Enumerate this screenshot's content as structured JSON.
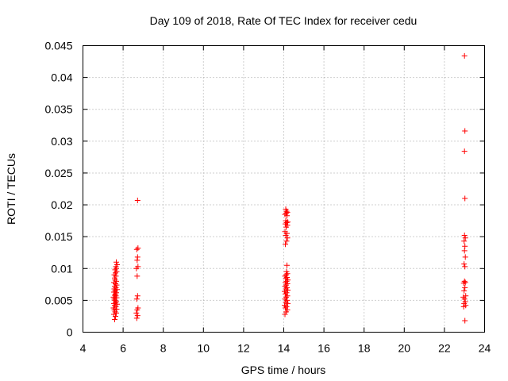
{
  "chart_data": {
    "type": "scatter",
    "title": "Day 109 of 2018, Rate Of TEC Index for receiver cedu",
    "xlabel": "GPS time / hours",
    "ylabel": "ROTI / TECUs",
    "xlim": [
      4,
      24
    ],
    "ylim": [
      0,
      0.045
    ],
    "grid": true,
    "marker": "+",
    "color": "#ff0000",
    "x_ticks": [
      "4",
      "6",
      "8",
      "10",
      "12",
      "14",
      "16",
      "18",
      "20",
      "22",
      "24"
    ],
    "y_ticks": [
      "0",
      "0.005",
      "0.01",
      "0.015",
      "0.02",
      "0.025",
      "0.03",
      "0.035",
      "0.04",
      "0.045"
    ],
    "series": [
      {
        "name": "ROTI",
        "points": [
          [
            5.58,
            0.002
          ],
          [
            5.62,
            0.0025
          ],
          [
            5.54,
            0.0028
          ],
          [
            5.66,
            0.003
          ],
          [
            5.6,
            0.0032
          ],
          [
            5.56,
            0.0035
          ],
          [
            5.68,
            0.0036
          ],
          [
            5.52,
            0.0038
          ],
          [
            5.64,
            0.004
          ],
          [
            5.58,
            0.0042
          ],
          [
            5.7,
            0.0044
          ],
          [
            5.54,
            0.0045
          ],
          [
            5.62,
            0.0047
          ],
          [
            5.66,
            0.0048
          ],
          [
            5.6,
            0.005
          ],
          [
            5.56,
            0.0052
          ],
          [
            5.68,
            0.0054
          ],
          [
            5.52,
            0.0055
          ],
          [
            5.64,
            0.0057
          ],
          [
            5.58,
            0.0058
          ],
          [
            5.62,
            0.006
          ],
          [
            5.66,
            0.0062
          ],
          [
            5.54,
            0.0063
          ],
          [
            5.6,
            0.0065
          ],
          [
            5.7,
            0.0067
          ],
          [
            5.56,
            0.0068
          ],
          [
            5.64,
            0.007
          ],
          [
            5.58,
            0.0072
          ],
          [
            5.68,
            0.0074
          ],
          [
            5.62,
            0.0076
          ],
          [
            5.54,
            0.0078
          ],
          [
            5.66,
            0.008
          ],
          [
            5.6,
            0.0082
          ],
          [
            5.58,
            0.0085
          ],
          [
            5.64,
            0.0088
          ],
          [
            5.56,
            0.009
          ],
          [
            5.62,
            0.0093
          ],
          [
            5.68,
            0.0095
          ],
          [
            5.6,
            0.0098
          ],
          [
            5.66,
            0.01
          ],
          [
            5.64,
            0.0103
          ],
          [
            5.7,
            0.0106
          ],
          [
            5.66,
            0.011
          ],
          [
            6.68,
            0.0022
          ],
          [
            6.72,
            0.0026
          ],
          [
            6.66,
            0.003
          ],
          [
            6.7,
            0.0035
          ],
          [
            6.74,
            0.0038
          ],
          [
            6.68,
            0.0052
          ],
          [
            6.72,
            0.0057
          ],
          [
            6.7,
            0.0088
          ],
          [
            6.66,
            0.01
          ],
          [
            6.74,
            0.0103
          ],
          [
            6.7,
            0.0113
          ],
          [
            6.72,
            0.0118
          ],
          [
            6.68,
            0.013
          ],
          [
            6.74,
            0.0132
          ],
          [
            6.72,
            0.0207
          ],
          [
            14.06,
            0.0028
          ],
          [
            14.12,
            0.0032
          ],
          [
            14.18,
            0.0035
          ],
          [
            14.08,
            0.0038
          ],
          [
            14.14,
            0.004
          ],
          [
            14.04,
            0.0042
          ],
          [
            14.2,
            0.0045
          ],
          [
            14.1,
            0.0047
          ],
          [
            14.16,
            0.005
          ],
          [
            14.06,
            0.0052
          ],
          [
            14.12,
            0.0055
          ],
          [
            14.18,
            0.0057
          ],
          [
            14.08,
            0.006
          ],
          [
            14.14,
            0.0062
          ],
          [
            14.04,
            0.0064
          ],
          [
            14.2,
            0.0066
          ],
          [
            14.1,
            0.0068
          ],
          [
            14.16,
            0.007
          ],
          [
            14.06,
            0.0072
          ],
          [
            14.12,
            0.0074
          ],
          [
            14.18,
            0.0076
          ],
          [
            14.08,
            0.0078
          ],
          [
            14.14,
            0.008
          ],
          [
            14.2,
            0.0082
          ],
          [
            14.1,
            0.0084
          ],
          [
            14.16,
            0.0086
          ],
          [
            14.06,
            0.0088
          ],
          [
            14.12,
            0.009
          ],
          [
            14.18,
            0.0092
          ],
          [
            14.14,
            0.0095
          ],
          [
            14.16,
            0.0105
          ],
          [
            14.08,
            0.0138
          ],
          [
            14.14,
            0.0143
          ],
          [
            14.18,
            0.0148
          ],
          [
            14.1,
            0.0152
          ],
          [
            14.16,
            0.0155
          ],
          [
            14.06,
            0.0158
          ],
          [
            14.12,
            0.0165
          ],
          [
            14.18,
            0.0168
          ],
          [
            14.08,
            0.017
          ],
          [
            14.14,
            0.0172
          ],
          [
            14.2,
            0.0173
          ],
          [
            14.1,
            0.0175
          ],
          [
            14.16,
            0.0183
          ],
          [
            14.06,
            0.0185
          ],
          [
            14.12,
            0.0187
          ],
          [
            14.18,
            0.0188
          ],
          [
            14.14,
            0.019
          ],
          [
            14.1,
            0.0193
          ],
          [
            23.02,
            0.0018
          ],
          [
            22.96,
            0.004
          ],
          [
            23.06,
            0.0042
          ],
          [
            22.98,
            0.0045
          ],
          [
            23.04,
            0.0048
          ],
          [
            23.0,
            0.0052
          ],
          [
            22.94,
            0.0055
          ],
          [
            23.06,
            0.0057
          ],
          [
            22.98,
            0.0065
          ],
          [
            23.02,
            0.007
          ],
          [
            22.96,
            0.0077
          ],
          [
            23.04,
            0.0078
          ],
          [
            23.0,
            0.008
          ],
          [
            23.02,
            0.0103
          ],
          [
            22.98,
            0.0107
          ],
          [
            23.04,
            0.0118
          ],
          [
            23.0,
            0.0128
          ],
          [
            23.02,
            0.0135
          ],
          [
            22.98,
            0.0143
          ],
          [
            23.04,
            0.0148
          ],
          [
            23.0,
            0.0152
          ],
          [
            23.02,
            0.021
          ],
          [
            23.0,
            0.0284
          ],
          [
            23.02,
            0.0316
          ],
          [
            23.0,
            0.0434
          ]
        ]
      }
    ]
  }
}
